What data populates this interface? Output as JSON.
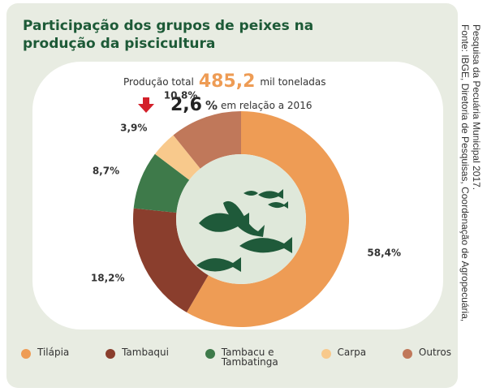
{
  "chart_data": {
    "type": "donut",
    "title": "Participação dos grupos de peixes na produção da piscicultura",
    "total_label": "Produção total",
    "total_value": "485,2",
    "total_unit": "mil toneladas",
    "change_value": "2,6",
    "change_unit": "%",
    "change_text": "em relação a 2016",
    "categories": [
      "Tilápia",
      "Tambaqui",
      "Tambacu e Tambatinga",
      "Carpa",
      "Outros"
    ],
    "values": [
      58.4,
      18.2,
      8.7,
      3.9,
      10.8
    ],
    "value_labels": [
      "58,4%",
      "18,2%",
      "8,7%",
      "3,9%",
      "10,8%"
    ],
    "colors": [
      "#ee9c55",
      "#8a3e2d",
      "#3e7a4a",
      "#f8c98c",
      "#c0785a"
    ],
    "source": [
      "Fonte: IBGE, Diretoria de Pesquisas, Coordenação de Agropecuária,",
      "Pesquisa da Pecuária Municipal 2017."
    ]
  }
}
